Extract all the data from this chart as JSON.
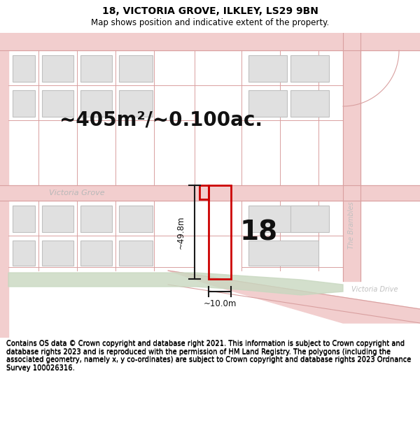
{
  "title": "18, VICTORIA GROVE, ILKLEY, LS29 9BN",
  "subtitle": "Map shows position and indicative extent of the property.",
  "area_label": "~405m²/~0.100ac.",
  "property_number": "18",
  "dim_vertical": "~49.8m",
  "dim_horizontal": "~10.0m",
  "street_label_left": "Victoria Grove",
  "street_label_right": "The Brambles",
  "street_label_bottom": "Victoria Drive",
  "footer": "Contains OS data © Crown copyright and database right 2021. This information is subject to Crown copyright and database rights 2023 and is reproduced with the permission of HM Land Registry. The polygons (including the associated geometry, namely x, y co-ordinates) are subject to Crown copyright and database rights 2023 Ordnance Survey 100026316.",
  "bg_color": "#ffffff",
  "map_bg": "#f7f4f0",
  "road_color": "#f2cece",
  "road_stroke": "#d9a0a0",
  "property_fill": "none",
  "property_stroke": "#cc0000",
  "building_fill": "#e0e0e0",
  "building_stroke": "#c0c0c0",
  "green_area_color": "#c8d8c0",
  "dim_line_color": "#1a1a1a",
  "street_text_color": "#b0b0b0",
  "title_fontsize": 10,
  "subtitle_fontsize": 8.5,
  "area_fontsize": 20,
  "footer_fontsize": 7.2,
  "prop_number_fontsize": 28
}
